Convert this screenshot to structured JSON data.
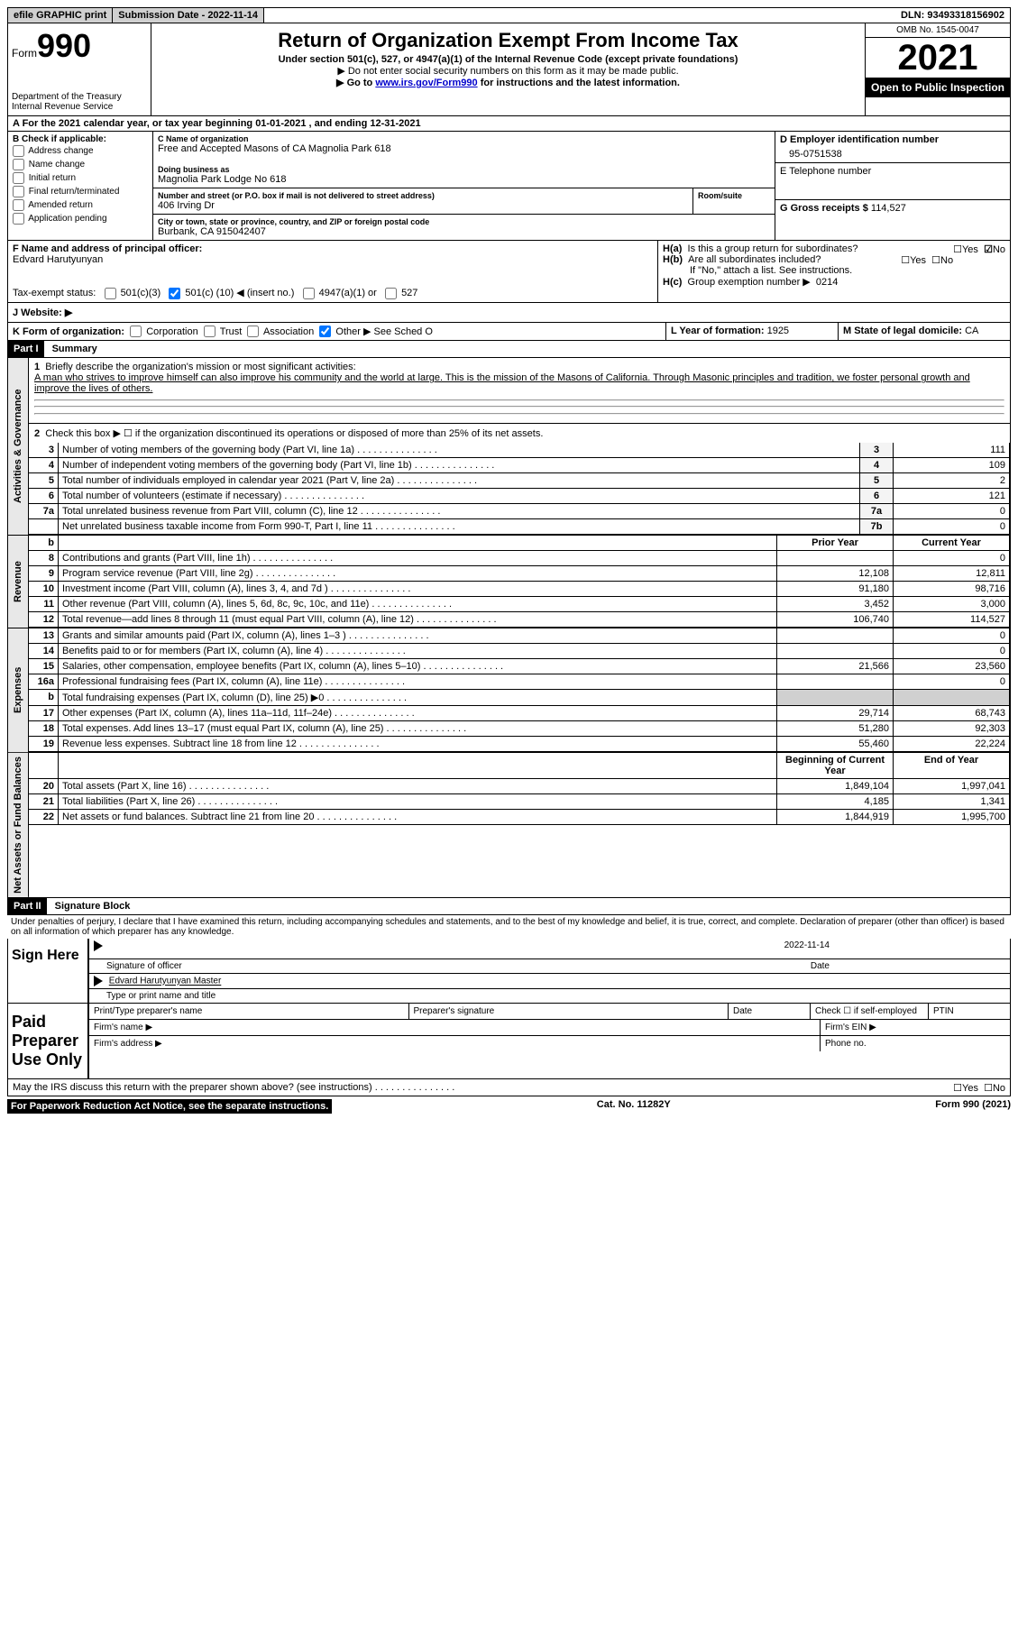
{
  "topbar": {
    "efile": "efile GRAPHIC print",
    "submission": "Submission Date - 2022-11-14",
    "dln": "DLN: 93493318156902"
  },
  "header": {
    "form_word": "Form",
    "form_num": "990",
    "dept": "Department of the Treasury Internal Revenue Service",
    "title": "Return of Organization Exempt From Income Tax",
    "subtitle": "Under section 501(c), 527, or 4947(a)(1) of the Internal Revenue Code (except private foundations)",
    "note1": "▶ Do not enter social security numbers on this form as it may be made public.",
    "note2_pre": "▶ Go to ",
    "note2_link": "www.irs.gov/Form990",
    "note2_post": " for instructions and the latest information.",
    "omb": "OMB No. 1545-0047",
    "year": "2021",
    "inspect": "Open to Public Inspection"
  },
  "period": {
    "line_a": "A For the 2021 calendar year, or tax year beginning 01-01-2021   , and ending 12-31-2021"
  },
  "section_b": {
    "label": "B Check if applicable:",
    "opts": [
      "Address change",
      "Name change",
      "Initial return",
      "Final return/terminated",
      "Amended return",
      "Application pending"
    ]
  },
  "section_c": {
    "name_label": "C Name of organization",
    "name": "Free and Accepted Masons of CA Magnolia Park 618",
    "dba_label": "Doing business as",
    "dba": "Magnolia Park Lodge No 618",
    "street_label": "Number and street (or P.O. box if mail is not delivered to street address)",
    "room_label": "Room/suite",
    "street": "406 Irving Dr",
    "city_label": "City or town, state or province, country, and ZIP or foreign postal code",
    "city": "Burbank, CA  915042407"
  },
  "section_d": {
    "label": "D Employer identification number",
    "value": "95-0751538"
  },
  "section_e": {
    "label": "E Telephone number",
    "value": ""
  },
  "section_g": {
    "label": "G Gross receipts $",
    "value": "114,527"
  },
  "section_f": {
    "label": "F  Name and address of principal officer:",
    "name": "Edvard Harutyunyan"
  },
  "section_h": {
    "ha": "Is this a group return for subordinates?",
    "hb": "Are all subordinates included?",
    "hb_note": "If \"No,\" attach a list. See instructions.",
    "hc": "Group exemption number ▶",
    "hc_val": "0214",
    "yes": "Yes",
    "no": "No"
  },
  "tax_exempt": {
    "label": "Tax-exempt status:",
    "opt1": "501(c)(3)",
    "opt2_pre": "501(c) (",
    "opt2_num": "10",
    "opt2_post": ") ◀ (insert no.)",
    "opt3": "4947(a)(1) or",
    "opt4": "527"
  },
  "website": {
    "label": "J   Website: ▶"
  },
  "section_k": {
    "label": "K Form of organization:",
    "opts": [
      "Corporation",
      "Trust",
      "Association"
    ],
    "other": "Other ▶",
    "other_note": "See Sched O"
  },
  "section_l": {
    "label": "L Year of formation:",
    "value": "1925"
  },
  "section_m": {
    "label": "M State of legal domicile:",
    "value": "CA"
  },
  "part1": {
    "header": "Part I",
    "title": "Summary",
    "mission_label": "Briefly describe the organization's mission or most significant activities:",
    "mission": "A man who strives to improve himself can also improve his community and the world at large. This is the mission of the Masons of California. Through Masonic principles and tradition, we foster personal growth and improve the lives of others.",
    "line2": "Check this box ▶ ☐  if the organization discontinued its operations or disposed of more than 25% of its net assets.",
    "tabs": {
      "gov": "Activities & Governance",
      "rev": "Revenue",
      "exp": "Expenses",
      "net": "Net Assets or Fund Balances"
    },
    "cols": {
      "prior": "Prior Year",
      "current": "Current Year",
      "begin": "Beginning of Current Year",
      "end": "End of Year"
    },
    "lines_gov": [
      {
        "n": "3",
        "t": "Number of voting members of the governing body (Part VI, line 1a)",
        "c": "3",
        "v": "111"
      },
      {
        "n": "4",
        "t": "Number of independent voting members of the governing body (Part VI, line 1b)",
        "c": "4",
        "v": "109"
      },
      {
        "n": "5",
        "t": "Total number of individuals employed in calendar year 2021 (Part V, line 2a)",
        "c": "5",
        "v": "2"
      },
      {
        "n": "6",
        "t": "Total number of volunteers (estimate if necessary)",
        "c": "6",
        "v": "121"
      },
      {
        "n": "7a",
        "t": "Total unrelated business revenue from Part VIII, column (C), line 12",
        "c": "7a",
        "v": "0"
      },
      {
        "n": "",
        "t": "Net unrelated business taxable income from Form 990-T, Part I, line 11",
        "c": "7b",
        "v": "0"
      }
    ],
    "lines_rev": [
      {
        "n": "8",
        "t": "Contributions and grants (Part VIII, line 1h)",
        "p": "",
        "c": "0"
      },
      {
        "n": "9",
        "t": "Program service revenue (Part VIII, line 2g)",
        "p": "12,108",
        "c": "12,811"
      },
      {
        "n": "10",
        "t": "Investment income (Part VIII, column (A), lines 3, 4, and 7d )",
        "p": "91,180",
        "c": "98,716"
      },
      {
        "n": "11",
        "t": "Other revenue (Part VIII, column (A), lines 5, 6d, 8c, 9c, 10c, and 11e)",
        "p": "3,452",
        "c": "3,000"
      },
      {
        "n": "12",
        "t": "Total revenue—add lines 8 through 11 (must equal Part VIII, column (A), line 12)",
        "p": "106,740",
        "c": "114,527"
      }
    ],
    "lines_exp": [
      {
        "n": "13",
        "t": "Grants and similar amounts paid (Part IX, column (A), lines 1–3 )",
        "p": "",
        "c": "0"
      },
      {
        "n": "14",
        "t": "Benefits paid to or for members (Part IX, column (A), line 4)",
        "p": "",
        "c": "0"
      },
      {
        "n": "15",
        "t": "Salaries, other compensation, employee benefits (Part IX, column (A), lines 5–10)",
        "p": "21,566",
        "c": "23,560"
      },
      {
        "n": "16a",
        "t": "Professional fundraising fees (Part IX, column (A), line 11e)",
        "p": "",
        "c": "0"
      },
      {
        "n": "b",
        "t": "Total fundraising expenses (Part IX, column (D), line 25) ▶0",
        "p": "grey",
        "c": "grey"
      },
      {
        "n": "17",
        "t": "Other expenses (Part IX, column (A), lines 11a–11d, 11f–24e)",
        "p": "29,714",
        "c": "68,743"
      },
      {
        "n": "18",
        "t": "Total expenses. Add lines 13–17 (must equal Part IX, column (A), line 25)",
        "p": "51,280",
        "c": "92,303"
      },
      {
        "n": "19",
        "t": "Revenue less expenses. Subtract line 18 from line 12",
        "p": "55,460",
        "c": "22,224"
      }
    ],
    "lines_net": [
      {
        "n": "20",
        "t": "Total assets (Part X, line 16)",
        "p": "1,849,104",
        "c": "1,997,041"
      },
      {
        "n": "21",
        "t": "Total liabilities (Part X, line 26)",
        "p": "4,185",
        "c": "1,341"
      },
      {
        "n": "22",
        "t": "Net assets or fund balances. Subtract line 21 from line 20",
        "p": "1,844,919",
        "c": "1,995,700"
      }
    ]
  },
  "part2": {
    "header": "Part II",
    "title": "Signature Block",
    "decl": "Under penalties of perjury, I declare that I have examined this return, including accompanying schedules and statements, and to the best of my knowledge and belief, it is true, correct, and complete. Declaration of preparer (other than officer) is based on all information of which preparer has any knowledge.",
    "sign_here": "Sign Here",
    "sig_officer": "Signature of officer",
    "sig_date": "Date",
    "sig_date_val": "2022-11-14",
    "sig_name": "Edvard Harutyunyan  Master",
    "sig_name_label": "Type or print name and title",
    "paid": "Paid Preparer Use Only",
    "prep_name": "Print/Type preparer's name",
    "prep_sig": "Preparer's signature",
    "date": "Date",
    "self": "Check ☐ if self-employed",
    "ptin": "PTIN",
    "firm_name": "Firm's name   ▶",
    "firm_ein": "Firm's EIN ▶",
    "firm_addr": "Firm's address ▶",
    "phone": "Phone no.",
    "discuss": "May the IRS discuss this return with the preparer shown above? (see instructions)"
  },
  "footer": {
    "left": "For Paperwork Reduction Act Notice, see the separate instructions.",
    "mid": "Cat. No. 11282Y",
    "right": "Form 990 (2021)"
  }
}
